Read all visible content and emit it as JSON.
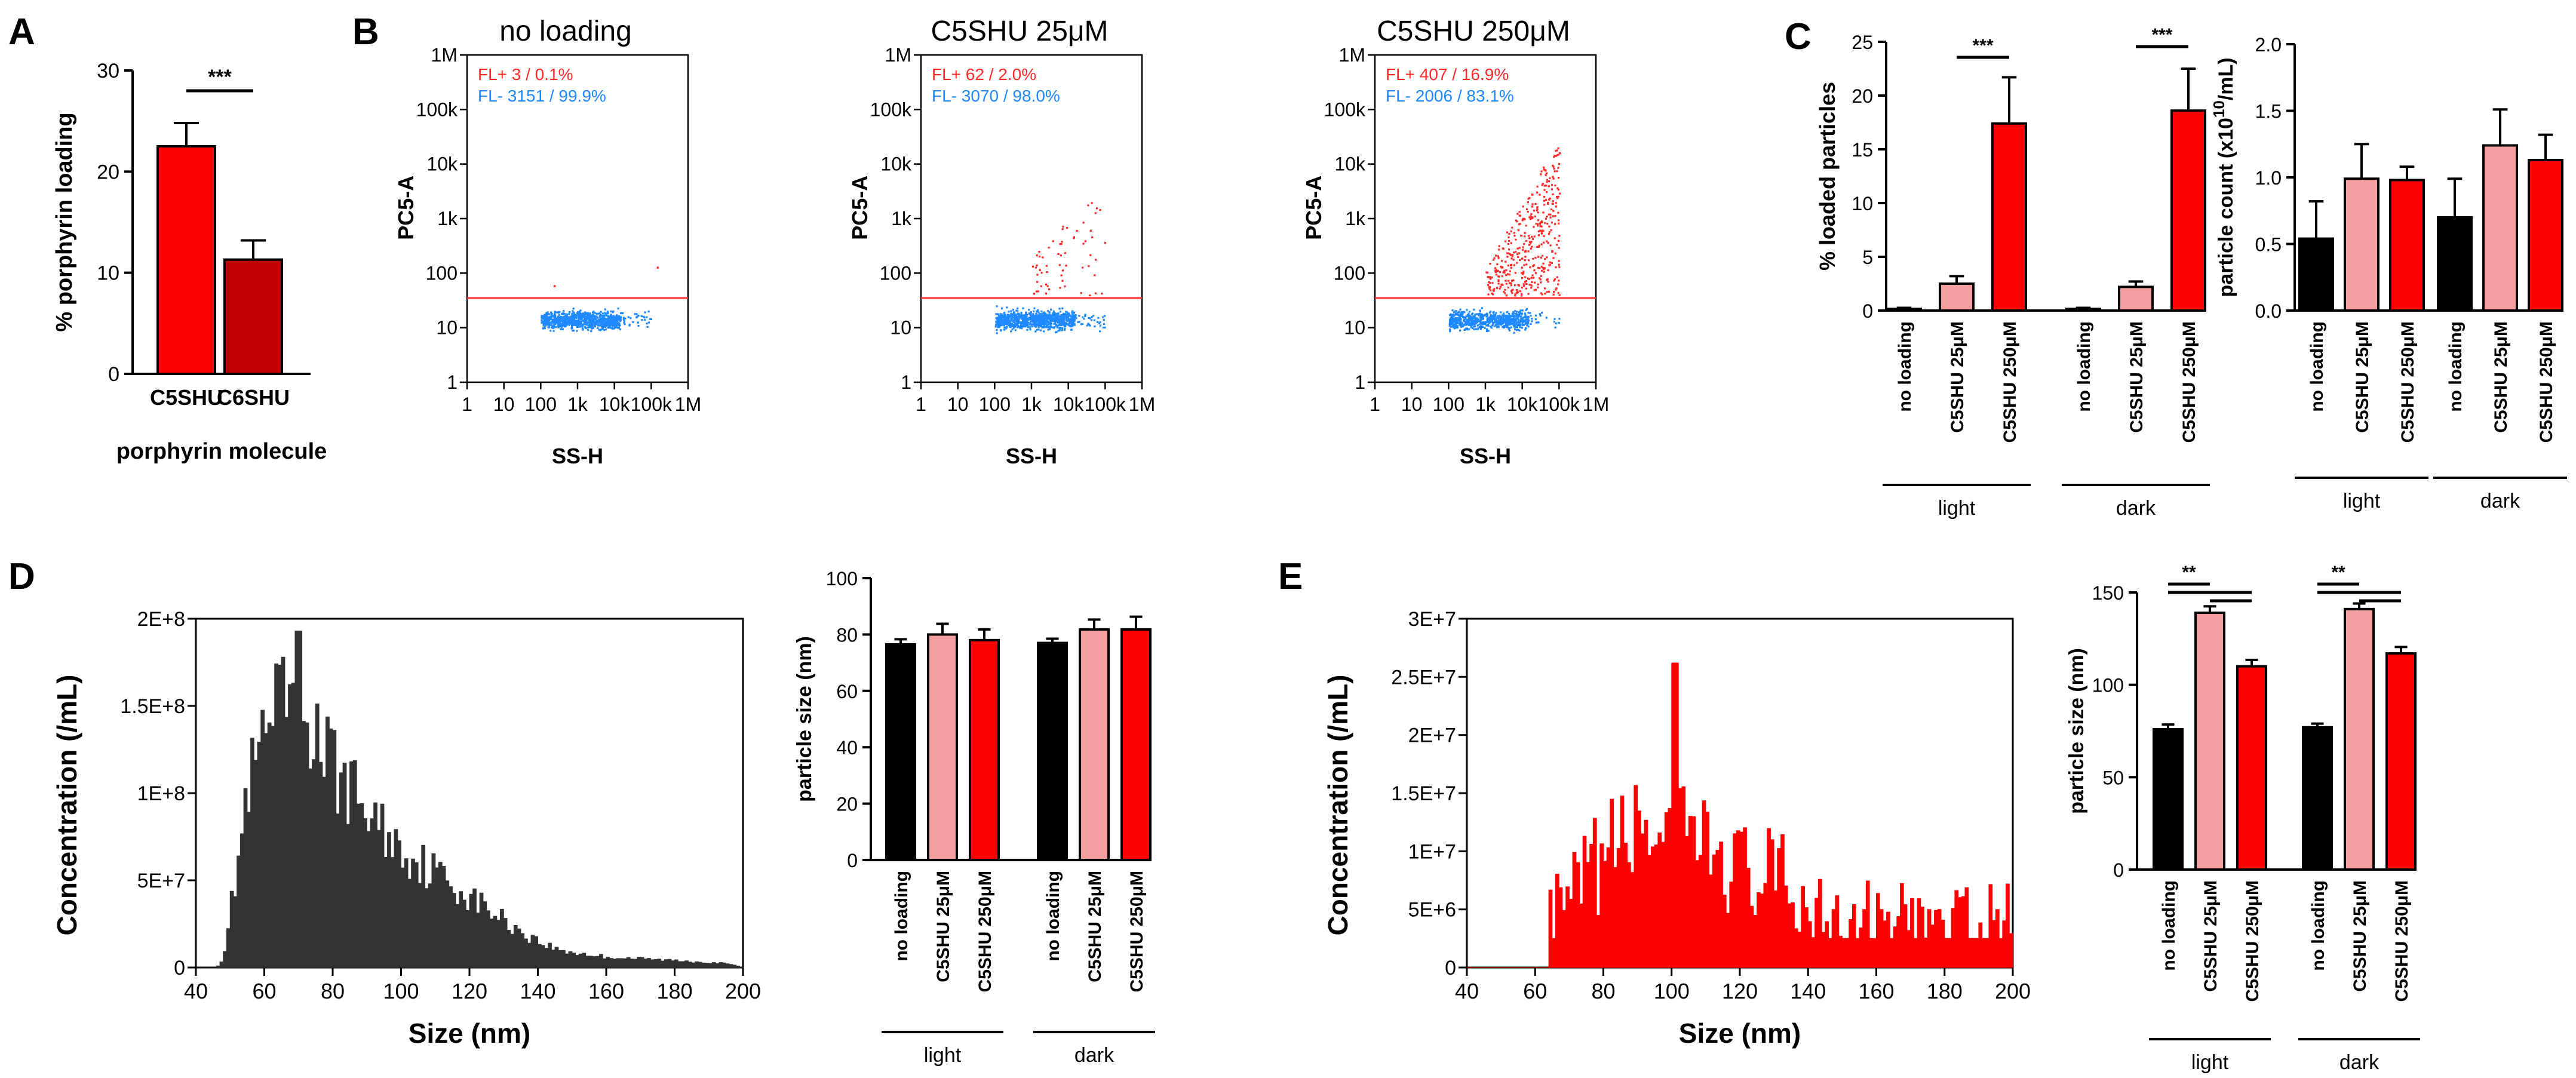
{
  "panel_letters": [
    "A",
    "B",
    "C",
    "D",
    "E"
  ],
  "chart_data": [
    {
      "id": "A",
      "type": "bar",
      "categories": [
        "C5SHU",
        "C6SHU"
      ],
      "values": [
        22.5,
        11.3
      ],
      "errors": [
        2.3,
        1.9
      ],
      "colors": [
        "#ff0000",
        "#c00000"
      ],
      "ylabel": "% porphyrin loading",
      "xlabel": "porphyrin molecule",
      "ylim": [
        0,
        30
      ],
      "yticks": [
        "0",
        "10",
        "20",
        "30"
      ],
      "significance": [
        {
          "label": "***"
        }
      ]
    },
    {
      "id": "B1",
      "type": "scatter",
      "title": "no loading",
      "xlabel": "SS-H",
      "ylabel": "PC5-A",
      "xticks": [
        "1",
        "10",
        "100",
        "1k",
        "10k",
        "100k",
        "1M"
      ],
      "yticks": [
        "1",
        "10",
        "100",
        "1k",
        "10k",
        "100k",
        "1M"
      ],
      "threshold": 35,
      "fl_pos": "FL+  3 / 0.1%",
      "fl_neg": "FL-  3151 / 99.9%",
      "pos_color": "#ff2a2a",
      "neg_color": "#1e88ff"
    },
    {
      "id": "B2",
      "type": "scatter",
      "title": "C5SHU 25μM",
      "xlabel": "SS-H",
      "ylabel": "PC5-A",
      "xticks": [
        "1",
        "10",
        "100",
        "1k",
        "10k",
        "100k",
        "1M"
      ],
      "yticks": [
        "1",
        "10",
        "100",
        "1k",
        "10k",
        "100k",
        "1M"
      ],
      "threshold": 35,
      "fl_pos": "FL+  62 / 2.0%",
      "fl_neg": "FL-  3070 / 98.0%",
      "pos_color": "#ff2a2a",
      "neg_color": "#1e88ff"
    },
    {
      "id": "B3",
      "type": "scatter",
      "title": "C5SHU 250μM",
      "xlabel": "SS-H",
      "ylabel": "PC5-A",
      "xticks": [
        "1",
        "10",
        "100",
        "1k",
        "10k",
        "100k",
        "1M"
      ],
      "yticks": [
        "1",
        "10",
        "100",
        "1k",
        "10k",
        "100k",
        "1M"
      ],
      "threshold": 35,
      "fl_pos": "FL+  407 / 16.9%",
      "fl_neg": "FL-  2006 / 83.1%",
      "pos_color": "#ff2a2a",
      "neg_color": "#1e88ff"
    },
    {
      "id": "C1",
      "type": "bar",
      "ylabel": "% loaded particles",
      "ylim": [
        0,
        25
      ],
      "yticks": [
        "0",
        "5",
        "10",
        "15",
        "20",
        "25"
      ],
      "categories": [
        "no loading",
        "C5SHU 25μM",
        "C5SHU 250μM",
        "no loading",
        "C5SHU 25μM",
        "C5SHU 250μM"
      ],
      "groups": [
        "light",
        "dark"
      ],
      "values": [
        0.15,
        2.5,
        17.4,
        0.15,
        2.2,
        18.6
      ],
      "errors": [
        0.1,
        0.7,
        4.3,
        0.1,
        0.5,
        3.9
      ],
      "colors": [
        "#000000",
        "#f4a0a0",
        "#ff0000",
        "#000000",
        "#f4a0a0",
        "#ff0000"
      ],
      "significance": [
        {
          "label": "***"
        },
        {
          "label": "***"
        }
      ]
    },
    {
      "id": "C2",
      "type": "bar",
      "ylabel_parts": [
        "particle count (x10",
        "10",
        "/mL)"
      ],
      "ylim": [
        0,
        2.0
      ],
      "yticks": [
        "0.0",
        "0.5",
        "1.0",
        "1.5",
        "2.0"
      ],
      "categories": [
        "no loading",
        "C5SHU 25μM",
        "C5SHU 250μM",
        "no loading",
        "C5SHU 25μM",
        "C5SHU 250μM"
      ],
      "groups": [
        "light",
        "dark"
      ],
      "values": [
        0.54,
        0.99,
        0.98,
        0.7,
        1.24,
        1.13
      ],
      "errors": [
        0.28,
        0.26,
        0.1,
        0.29,
        0.27,
        0.19
      ],
      "colors": [
        "#000000",
        "#f4a0a0",
        "#ff0000",
        "#000000",
        "#f4a0a0",
        "#ff0000"
      ]
    },
    {
      "id": "D1",
      "type": "histogram",
      "xlabel": "Size (nm)",
      "ylabel": "Concentration (/mL)",
      "xlim": [
        40,
        200
      ],
      "xticks": [
        "40",
        "60",
        "80",
        "100",
        "120",
        "140",
        "160",
        "180",
        "200"
      ],
      "ylim": [
        0,
        200000000
      ],
      "yticks": [
        "0",
        "5E+7",
        "1E+8",
        "1.5E+8",
        "2E+8"
      ],
      "color": "#333333",
      "profile": [
        [
          46,
          0
        ],
        [
          48,
          0.05
        ],
        [
          50,
          0.3
        ],
        [
          52,
          0.55
        ],
        [
          54,
          0.85
        ],
        [
          56,
          1.05
        ],
        [
          60,
          1.3
        ],
        [
          64,
          1.45
        ],
        [
          68,
          1.55
        ],
        [
          72,
          1.45
        ],
        [
          76,
          1.3
        ],
        [
          80,
          1.15
        ],
        [
          86,
          1.0
        ],
        [
          92,
          0.85
        ],
        [
          98,
          0.72
        ],
        [
          104,
          0.62
        ],
        [
          110,
          0.55
        ],
        [
          116,
          0.46
        ],
        [
          122,
          0.38
        ],
        [
          128,
          0.3
        ],
        [
          134,
          0.22
        ],
        [
          140,
          0.15
        ],
        [
          146,
          0.1
        ],
        [
          152,
          0.08
        ],
        [
          160,
          0.06
        ],
        [
          170,
          0.05
        ],
        [
          180,
          0.04
        ],
        [
          190,
          0.03
        ],
        [
          196,
          0.02
        ],
        [
          200,
          0
        ]
      ],
      "peak": [
        70,
        1.93
      ]
    },
    {
      "id": "D2",
      "type": "bar",
      "ylabel": "particle size (nm)",
      "ylim": [
        0,
        100
      ],
      "yticks": [
        "0",
        "20",
        "40",
        "60",
        "80",
        "100"
      ],
      "categories": [
        "no loading",
        "C5SHU 25μM",
        "C5SHU 250μM",
        "no loading",
        "C5SHU 25μM",
        "C5SHU 250μM"
      ],
      "groups": [
        "light",
        "dark"
      ],
      "values": [
        76.5,
        80.0,
        78.0,
        77.0,
        81.8,
        81.8
      ],
      "errors": [
        1.8,
        3.8,
        3.8,
        1.5,
        3.5,
        4.5
      ],
      "colors": [
        "#000000",
        "#f4a0a0",
        "#ff0000",
        "#000000",
        "#f4a0a0",
        "#ff0000"
      ]
    },
    {
      "id": "E1",
      "type": "histogram",
      "xlabel": "Size (nm)",
      "ylabel": "Concentration (/mL)",
      "xlim": [
        40,
        200
      ],
      "xticks": [
        "40",
        "60",
        "80",
        "100",
        "120",
        "140",
        "160",
        "180",
        "200"
      ],
      "ylim": [
        0,
        30000000
      ],
      "yticks": [
        "0",
        "5E+6",
        "1E+7",
        "1.5E+7",
        "2E+7",
        "2.5E+7",
        "3E+7"
      ],
      "color": "#ff0000",
      "profile": [
        [
          40,
          0
        ],
        [
          63,
          0
        ],
        [
          65,
          0.25
        ],
        [
          70,
          0.45
        ],
        [
          75,
          0.7
        ],
        [
          80,
          0.9
        ],
        [
          85,
          1.05
        ],
        [
          90,
          1.15
        ],
        [
          95,
          1.15
        ],
        [
          100,
          1.15
        ],
        [
          105,
          1.05
        ],
        [
          110,
          1.0
        ],
        [
          115,
          0.9
        ],
        [
          120,
          0.8
        ],
        [
          125,
          0.75
        ],
        [
          130,
          0.7
        ],
        [
          135,
          0.6
        ],
        [
          140,
          0.5
        ],
        [
          145,
          0.42
        ],
        [
          150,
          0.38
        ],
        [
          160,
          0.32
        ],
        [
          170,
          0.28
        ],
        [
          180,
          0.26
        ],
        [
          190,
          0.25
        ],
        [
          199,
          0.25
        ],
        [
          200,
          0
        ]
      ],
      "peak": [
        101,
        2.62
      ]
    },
    {
      "id": "E2",
      "type": "bar",
      "ylabel": "particle size (nm)",
      "ylim": [
        0,
        150
      ],
      "yticks": [
        "0",
        "50",
        "100",
        "150"
      ],
      "categories": [
        "no loading",
        "C5SHU 25μM",
        "C5SHU 250μM",
        "no loading",
        "C5SHU 25μM",
        "C5SHU 250μM"
      ],
      "groups": [
        "light",
        "dark"
      ],
      "values": [
        76.0,
        139.0,
        110.0,
        77.0,
        141.0,
        117.0
      ],
      "errors": [
        2.5,
        3.5,
        3.5,
        2.0,
        3.0,
        3.5
      ],
      "colors": [
        "#000000",
        "#f4a0a0",
        "#ff0000",
        "#000000",
        "#f4a0a0",
        "#ff0000"
      ],
      "significance": [
        {
          "label": "**"
        },
        {
          "label": "**"
        }
      ]
    }
  ]
}
